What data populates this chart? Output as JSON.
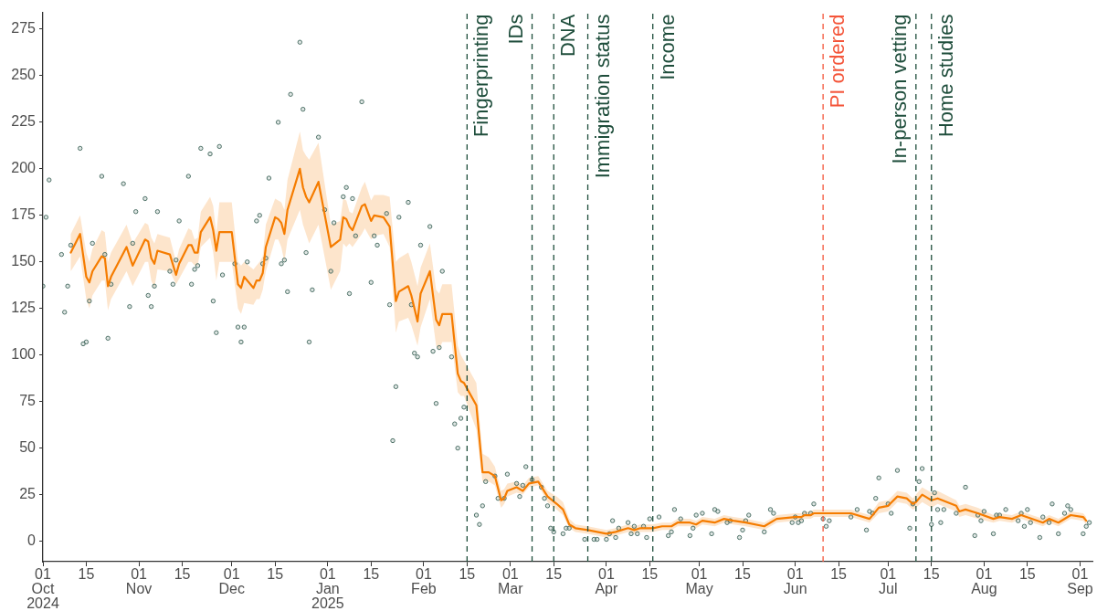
{
  "chart_data": {
    "type": "line",
    "xlim": [
      "2024-10-01",
      "2025-09-05"
    ],
    "xticks": [
      {
        "value": "2024-10-01",
        "label": "01\nOct\n2024"
      },
      {
        "value": "2024-10-15",
        "label": "15"
      },
      {
        "value": "2024-11-01",
        "label": "01\nNov"
      },
      {
        "value": "2024-11-15",
        "label": "15"
      },
      {
        "value": "2024-12-01",
        "label": "01\nDec"
      },
      {
        "value": "2024-12-15",
        "label": "15"
      },
      {
        "value": "2025-01-01",
        "label": "01\nJan\n2025"
      },
      {
        "value": "2025-01-15",
        "label": "15"
      },
      {
        "value": "2025-02-01",
        "label": "01\nFeb"
      },
      {
        "value": "2025-02-15",
        "label": "15"
      },
      {
        "value": "2025-03-01",
        "label": "01\nMar"
      },
      {
        "value": "2025-03-15",
        "label": "15"
      },
      {
        "value": "2025-04-01",
        "label": "01\nApr"
      },
      {
        "value": "2025-04-15",
        "label": "15"
      },
      {
        "value": "2025-05-01",
        "label": "01\nMay"
      },
      {
        "value": "2025-05-15",
        "label": "15"
      },
      {
        "value": "2025-06-01",
        "label": "01\nJun"
      },
      {
        "value": "2025-06-15",
        "label": "15"
      },
      {
        "value": "2025-07-01",
        "label": "01\nJul"
      },
      {
        "value": "2025-07-15",
        "label": "15"
      },
      {
        "value": "2025-08-01",
        "label": "01\nAug"
      },
      {
        "value": "2025-08-15",
        "label": "15"
      },
      {
        "value": "2025-09-01",
        "label": "01\nSep"
      }
    ],
    "ylim": [
      -11,
      284
    ],
    "yticks": [
      0,
      25,
      50,
      75,
      100,
      125,
      150,
      175,
      200,
      225,
      250,
      275
    ],
    "series": [
      {
        "type": "scatter",
        "marker": "circle",
        "color": "#4f7268",
        "x": [
          "2024-10-01",
          "2024-10-02",
          "2024-10-03",
          "2024-10-07",
          "2024-10-08",
          "2024-10-09",
          "2024-10-10",
          "2024-10-13",
          "2024-10-14",
          "2024-10-15",
          "2024-10-16",
          "2024-10-17",
          "2024-10-20",
          "2024-10-21",
          "2024-10-22",
          "2024-10-23",
          "2024-10-27",
          "2024-10-29",
          "2024-10-30",
          "2024-10-31",
          "2024-11-03",
          "2024-11-04",
          "2024-11-05",
          "2024-11-06",
          "2024-11-07",
          "2024-11-11",
          "2024-11-12",
          "2024-11-13",
          "2024-11-14",
          "2024-11-17",
          "2024-11-18",
          "2024-11-19",
          "2024-11-20",
          "2024-11-21",
          "2024-11-24",
          "2024-11-25",
          "2024-11-26",
          "2024-11-27",
          "2024-11-28",
          "2024-12-02",
          "2024-12-03",
          "2024-12-04",
          "2024-12-05",
          "2024-12-06",
          "2024-12-09",
          "2024-12-10",
          "2024-12-11",
          "2024-12-12",
          "2024-12-13",
          "2024-12-16",
          "2024-12-17",
          "2024-12-18",
          "2024-12-19",
          "2024-12-20",
          "2024-12-23",
          "2024-12-24",
          "2024-12-25",
          "2024-12-26",
          "2024-12-27",
          "2024-12-29",
          "2024-12-31",
          "2025-01-02",
          "2025-01-03",
          "2025-01-06",
          "2025-01-07",
          "2025-01-08",
          "2025-01-09",
          "2025-01-10",
          "2025-01-12",
          "2025-01-15",
          "2025-01-16",
          "2025-01-17",
          "2025-01-20",
          "2025-01-21",
          "2025-01-22",
          "2025-01-23",
          "2025-01-24",
          "2025-01-27",
          "2025-01-28",
          "2025-01-29",
          "2025-01-30",
          "2025-01-31",
          "2025-02-03",
          "2025-02-04",
          "2025-02-05",
          "2025-02-06",
          "2025-02-07",
          "2025-02-10",
          "2025-02-11",
          "2025-02-12",
          "2025-02-13",
          "2025-02-14",
          "2025-02-18",
          "2025-02-19",
          "2025-02-20",
          "2025-02-21",
          "2025-02-24",
          "2025-02-25",
          "2025-02-27",
          "2025-02-28",
          "2025-03-03",
          "2025-03-04",
          "2025-03-05",
          "2025-03-06",
          "2025-03-08",
          "2025-03-11",
          "2025-03-12",
          "2025-03-13",
          "2025-03-14",
          "2025-03-15",
          "2025-03-18",
          "2025-03-19",
          "2025-03-20",
          "2025-03-25",
          "2025-03-28",
          "2025-03-29",
          "2025-04-01",
          "2025-04-02",
          "2025-04-03",
          "2025-04-04",
          "2025-04-05",
          "2025-04-08",
          "2025-04-09",
          "2025-04-10",
          "2025-04-11",
          "2025-04-13",
          "2025-04-14",
          "2025-04-15",
          "2025-04-18",
          "2025-04-21",
          "2025-04-22",
          "2025-04-23",
          "2025-04-25",
          "2025-04-28",
          "2025-04-29",
          "2025-04-30",
          "2025-05-02",
          "2025-05-05",
          "2025-05-06",
          "2025-05-07",
          "2025-05-10",
          "2025-05-11",
          "2025-05-14",
          "2025-05-15",
          "2025-05-16",
          "2025-05-17",
          "2025-05-22",
          "2025-05-24",
          "2025-05-25",
          "2025-05-31",
          "2025-06-01",
          "2025-06-02",
          "2025-06-03",
          "2025-06-04",
          "2025-06-06",
          "2025-06-07",
          "2025-06-10",
          "2025-06-11",
          "2025-06-12",
          "2025-06-19",
          "2025-06-21",
          "2025-06-24",
          "2025-06-25",
          "2025-06-26",
          "2025-06-27",
          "2025-06-28",
          "2025-07-01",
          "2025-07-02",
          "2025-07-04",
          "2025-07-08",
          "2025-07-09",
          "2025-07-11",
          "2025-07-12",
          "2025-07-15",
          "2025-07-16",
          "2025-07-17",
          "2025-07-18",
          "2025-07-19",
          "2025-07-23",
          "2025-07-26",
          "2025-07-29",
          "2025-07-30",
          "2025-07-31",
          "2025-08-01",
          "2025-08-04",
          "2025-08-05",
          "2025-08-06",
          "2025-08-08",
          "2025-08-12",
          "2025-08-13",
          "2025-08-14",
          "2025-08-15",
          "2025-08-16",
          "2025-08-19",
          "2025-08-20",
          "2025-08-22",
          "2025-08-23",
          "2025-08-25",
          "2025-08-27",
          "2025-08-28",
          "2025-08-29",
          "2025-09-02",
          "2025-09-03",
          "2025-09-04"
        ],
        "values": [
          137,
          174,
          194,
          154,
          123,
          137,
          159,
          211,
          106,
          107,
          129,
          160,
          196,
          154,
          109,
          138,
          192,
          126,
          160,
          177,
          184,
          132,
          126,
          137,
          177,
          145,
          138,
          151,
          172,
          196,
          138,
          146,
          148,
          211,
          208,
          129,
          112,
          212,
          143,
          149,
          115,
          107,
          115,
          150,
          172,
          175,
          149,
          152,
          195,
          225,
          149,
          151,
          134,
          240,
          268,
          232,
          155,
          107,
          135,
          217,
          178,
          145,
          171,
          185,
          190,
          133,
          184,
          164,
          236,
          139,
          164,
          159,
          176,
          127,
          54,
          83,
          174,
          182,
          127,
          101,
          99,
          159,
          169,
          102,
          74,
          104,
          145,
          99,
          63,
          50,
          66,
          72,
          14,
          9,
          19,
          32,
          35,
          23,
          23,
          36,
          31,
          24,
          30,
          40,
          33,
          29,
          23,
          19,
          7,
          5,
          4,
          7,
          7,
          1,
          1,
          1,
          1,
          4,
          11,
          2,
          7,
          10,
          4,
          8,
          4,
          8,
          2,
          12,
          13,
          3,
          5,
          17,
          12,
          3,
          7,
          14,
          15,
          4,
          17,
          16,
          10,
          11,
          2,
          6,
          11,
          14,
          5,
          17,
          15,
          10,
          13,
          10,
          11,
          15,
          15,
          20,
          12,
          8,
          11,
          13,
          17,
          6,
          16,
          15,
          23,
          34,
          20,
          15,
          38,
          7,
          20,
          32,
          39,
          9,
          26,
          17,
          10,
          17,
          15,
          29,
          3,
          14,
          11,
          16,
          4,
          14,
          14,
          17,
          11,
          15,
          8,
          17,
          10,
          2,
          13,
          10,
          20,
          4,
          15,
          19,
          17,
          4,
          8,
          10
        ]
      },
      {
        "marker": "none",
        "color": "#f57c00",
        "x": [
          "2024-10-10",
          "2024-10-13",
          "2024-10-15",
          "2024-10-16",
          "2024-10-17",
          "2024-10-20",
          "2024-10-21",
          "2024-10-22",
          "2024-10-23",
          "2024-10-28",
          "2024-10-30",
          "2024-11-03",
          "2024-11-04",
          "2024-11-05",
          "2024-11-06",
          "2024-11-07",
          "2024-11-11",
          "2024-11-13",
          "2024-11-14",
          "2024-11-17",
          "2024-11-18",
          "2024-11-19",
          "2024-11-20",
          "2024-11-21",
          "2024-11-24",
          "2024-11-25",
          "2024-11-26",
          "2024-11-27",
          "2024-12-01",
          "2024-12-03",
          "2024-12-04",
          "2024-12-05",
          "2024-12-08",
          "2024-12-09",
          "2024-12-10",
          "2024-12-11",
          "2024-12-12",
          "2024-12-15",
          "2024-12-16",
          "2024-12-17",
          "2024-12-18",
          "2024-12-19",
          "2024-12-23",
          "2024-12-24",
          "2024-12-25",
          "2024-12-26",
          "2024-12-29",
          "2025-01-02",
          "2025-01-05",
          "2025-01-06",
          "2025-01-07",
          "2025-01-08",
          "2025-01-09",
          "2025-01-12",
          "2025-01-13",
          "2025-01-15",
          "2025-01-16",
          "2025-01-19",
          "2025-01-21",
          "2025-01-23",
          "2025-01-24",
          "2025-01-27",
          "2025-01-28",
          "2025-01-30",
          "2025-01-31",
          "2025-02-03",
          "2025-02-05",
          "2025-02-06",
          "2025-02-07",
          "2025-02-10",
          "2025-02-12",
          "2025-02-13",
          "2025-02-14",
          "2025-02-18",
          "2025-02-20",
          "2025-02-22",
          "2025-02-24",
          "2025-02-26",
          "2025-02-27",
          "2025-02-28",
          "2025-03-03",
          "2025-03-05",
          "2025-03-07",
          "2025-03-10",
          "2025-03-13",
          "2025-03-16",
          "2025-03-18",
          "2025-03-20",
          "2025-03-22",
          "2025-03-26",
          "2025-04-01",
          "2025-04-04",
          "2025-04-08",
          "2025-04-10",
          "2025-04-12",
          "2025-04-16",
          "2025-04-19",
          "2025-04-22",
          "2025-04-24",
          "2025-04-28",
          "2025-04-30",
          "2025-05-02",
          "2025-05-06",
          "2025-05-09",
          "2025-05-12",
          "2025-05-16",
          "2025-05-22",
          "2025-05-26",
          "2025-06-01",
          "2025-06-03",
          "2025-06-04",
          "2025-06-06",
          "2025-06-07",
          "2025-06-19",
          "2025-06-25",
          "2025-06-28",
          "2025-07-01",
          "2025-07-04",
          "2025-07-07",
          "2025-07-09",
          "2025-07-10",
          "2025-07-12",
          "2025-07-13",
          "2025-07-15",
          "2025-07-17",
          "2025-07-23",
          "2025-07-24",
          "2025-07-26",
          "2025-07-30",
          "2025-08-04",
          "2025-08-06",
          "2025-08-10",
          "2025-08-13",
          "2025-08-20",
          "2025-08-22",
          "2025-08-25",
          "2025-08-29",
          "2025-09-02",
          "2025-09-03"
        ],
        "values": [
          155,
          165,
          142,
          139,
          145,
          153,
          152,
          137,
          142,
          158,
          148,
          162,
          161,
          152,
          149,
          156,
          154,
          143,
          149,
          159,
          159,
          155,
          155,
          166,
          174,
          167,
          156,
          166,
          166,
          138,
          136,
          142,
          136,
          140,
          140,
          144,
          158,
          174,
          173,
          171,
          165,
          178,
          200,
          190,
          185,
          182,
          193,
          158,
          162,
          174,
          173,
          169,
          167,
          180,
          181,
          172,
          175,
          174,
          169,
          129,
          134,
          137,
          132,
          118,
          133,
          145,
          119,
          116,
          122,
          122,
          90,
          86,
          85,
          73,
          37,
          37,
          35,
          22,
          23,
          27,
          29,
          27,
          31,
          32,
          24,
          20,
          17,
          9,
          7,
          6,
          4,
          5,
          7,
          6,
          7,
          7,
          8,
          8,
          10,
          10,
          9,
          11,
          10,
          12,
          11,
          10,
          8,
          12,
          13,
          13,
          14,
          14,
          15,
          15,
          12,
          18,
          19,
          24,
          23,
          20,
          21,
          25,
          24,
          22,
          23,
          19,
          16,
          17,
          15,
          12,
          13,
          12,
          14,
          10,
          12,
          10,
          14,
          13,
          11
        ],
        "lower": [
          145,
          153,
          130,
          125,
          132,
          140,
          140,
          124,
          130,
          145,
          137,
          150,
          150,
          140,
          136,
          146,
          145,
          138,
          141,
          150,
          150,
          148,
          148,
          158,
          163,
          155,
          140,
          150,
          150,
          125,
          122,
          128,
          127,
          130,
          130,
          135,
          145,
          162,
          162,
          158,
          150,
          162,
          178,
          170,
          165,
          160,
          170,
          135,
          145,
          160,
          158,
          160,
          158,
          165,
          168,
          162,
          164,
          165,
          158,
          112,
          118,
          120,
          116,
          105,
          115,
          130,
          105,
          103,
          107,
          107,
          80,
          78,
          78,
          60,
          32,
          32,
          30,
          18,
          20,
          24,
          26,
          25,
          29,
          30,
          21,
          17,
          14,
          7,
          5,
          4,
          2,
          3,
          5,
          4,
          5,
          5,
          6,
          6,
          8,
          8,
          7,
          9,
          8,
          10,
          9,
          8,
          6,
          10,
          11,
          11,
          12,
          12,
          13,
          13,
          10,
          15,
          16,
          21,
          20,
          17,
          18,
          21,
          20,
          18,
          20,
          16,
          13,
          14,
          12,
          10,
          11,
          10,
          12,
          8,
          10,
          8,
          12,
          11,
          9
        ],
        "upper": [
          165,
          175,
          155,
          150,
          157,
          167,
          166,
          150,
          155,
          170,
          160,
          171,
          170,
          163,
          160,
          165,
          163,
          150,
          157,
          168,
          167,
          162,
          163,
          177,
          185,
          180,
          165,
          182,
          182,
          150,
          148,
          150,
          146,
          148,
          150,
          153,
          170,
          184,
          183,
          182,
          178,
          194,
          220,
          210,
          207,
          205,
          214,
          170,
          172,
          184,
          183,
          177,
          176,
          190,
          193,
          183,
          186,
          186,
          185,
          150,
          152,
          155,
          150,
          137,
          147,
          160,
          135,
          133,
          138,
          138,
          105,
          100,
          97,
          85,
          47,
          45,
          40,
          27,
          28,
          31,
          32,
          30,
          34,
          35,
          27,
          24,
          21,
          12,
          9,
          8,
          6,
          7,
          9,
          8,
          9,
          9,
          10,
          10,
          12,
          12,
          11,
          13,
          12,
          14,
          13,
          12,
          10,
          14,
          15,
          15,
          16,
          16,
          17,
          17,
          14,
          21,
          22,
          27,
          26,
          23,
          25,
          29,
          28,
          26,
          27,
          22,
          19,
          20,
          18,
          14,
          15,
          14,
          16,
          12,
          14,
          12,
          16,
          15,
          13
        ]
      }
    ],
    "ref_lines": [
      {
        "axis": "x",
        "value": "2025-02-15",
        "label": "Fingerprinting",
        "color": "#1e4d3b",
        "line_style": "dashed"
      },
      {
        "axis": "x",
        "value": "2025-03-08",
        "label": "IDs",
        "color": "#1e4d3b",
        "line_style": "dashed"
      },
      {
        "axis": "x",
        "value": "2025-03-15",
        "label": "DNA",
        "color": "#1e4d3b",
        "line_style": "dashed"
      },
      {
        "axis": "x",
        "value": "2025-03-26",
        "label": "Immigration status",
        "color": "#1e4d3b",
        "line_style": "dashed"
      },
      {
        "axis": "x",
        "value": "2025-04-16",
        "label": "Income",
        "color": "#1e4d3b",
        "line_style": "dashed"
      },
      {
        "axis": "x",
        "value": "2025-06-10",
        "label": "PI ordered",
        "color": "#f4553a",
        "line_style": "dashed"
      },
      {
        "axis": "x",
        "value": "2025-07-10",
        "label": "In-person vetting",
        "color": "#1e4d3b",
        "line_style": "dashed"
      },
      {
        "axis": "x",
        "value": "2025-07-15",
        "label": "Home studies",
        "color": "#1e4d3b",
        "line_style": "dashed"
      }
    ]
  }
}
